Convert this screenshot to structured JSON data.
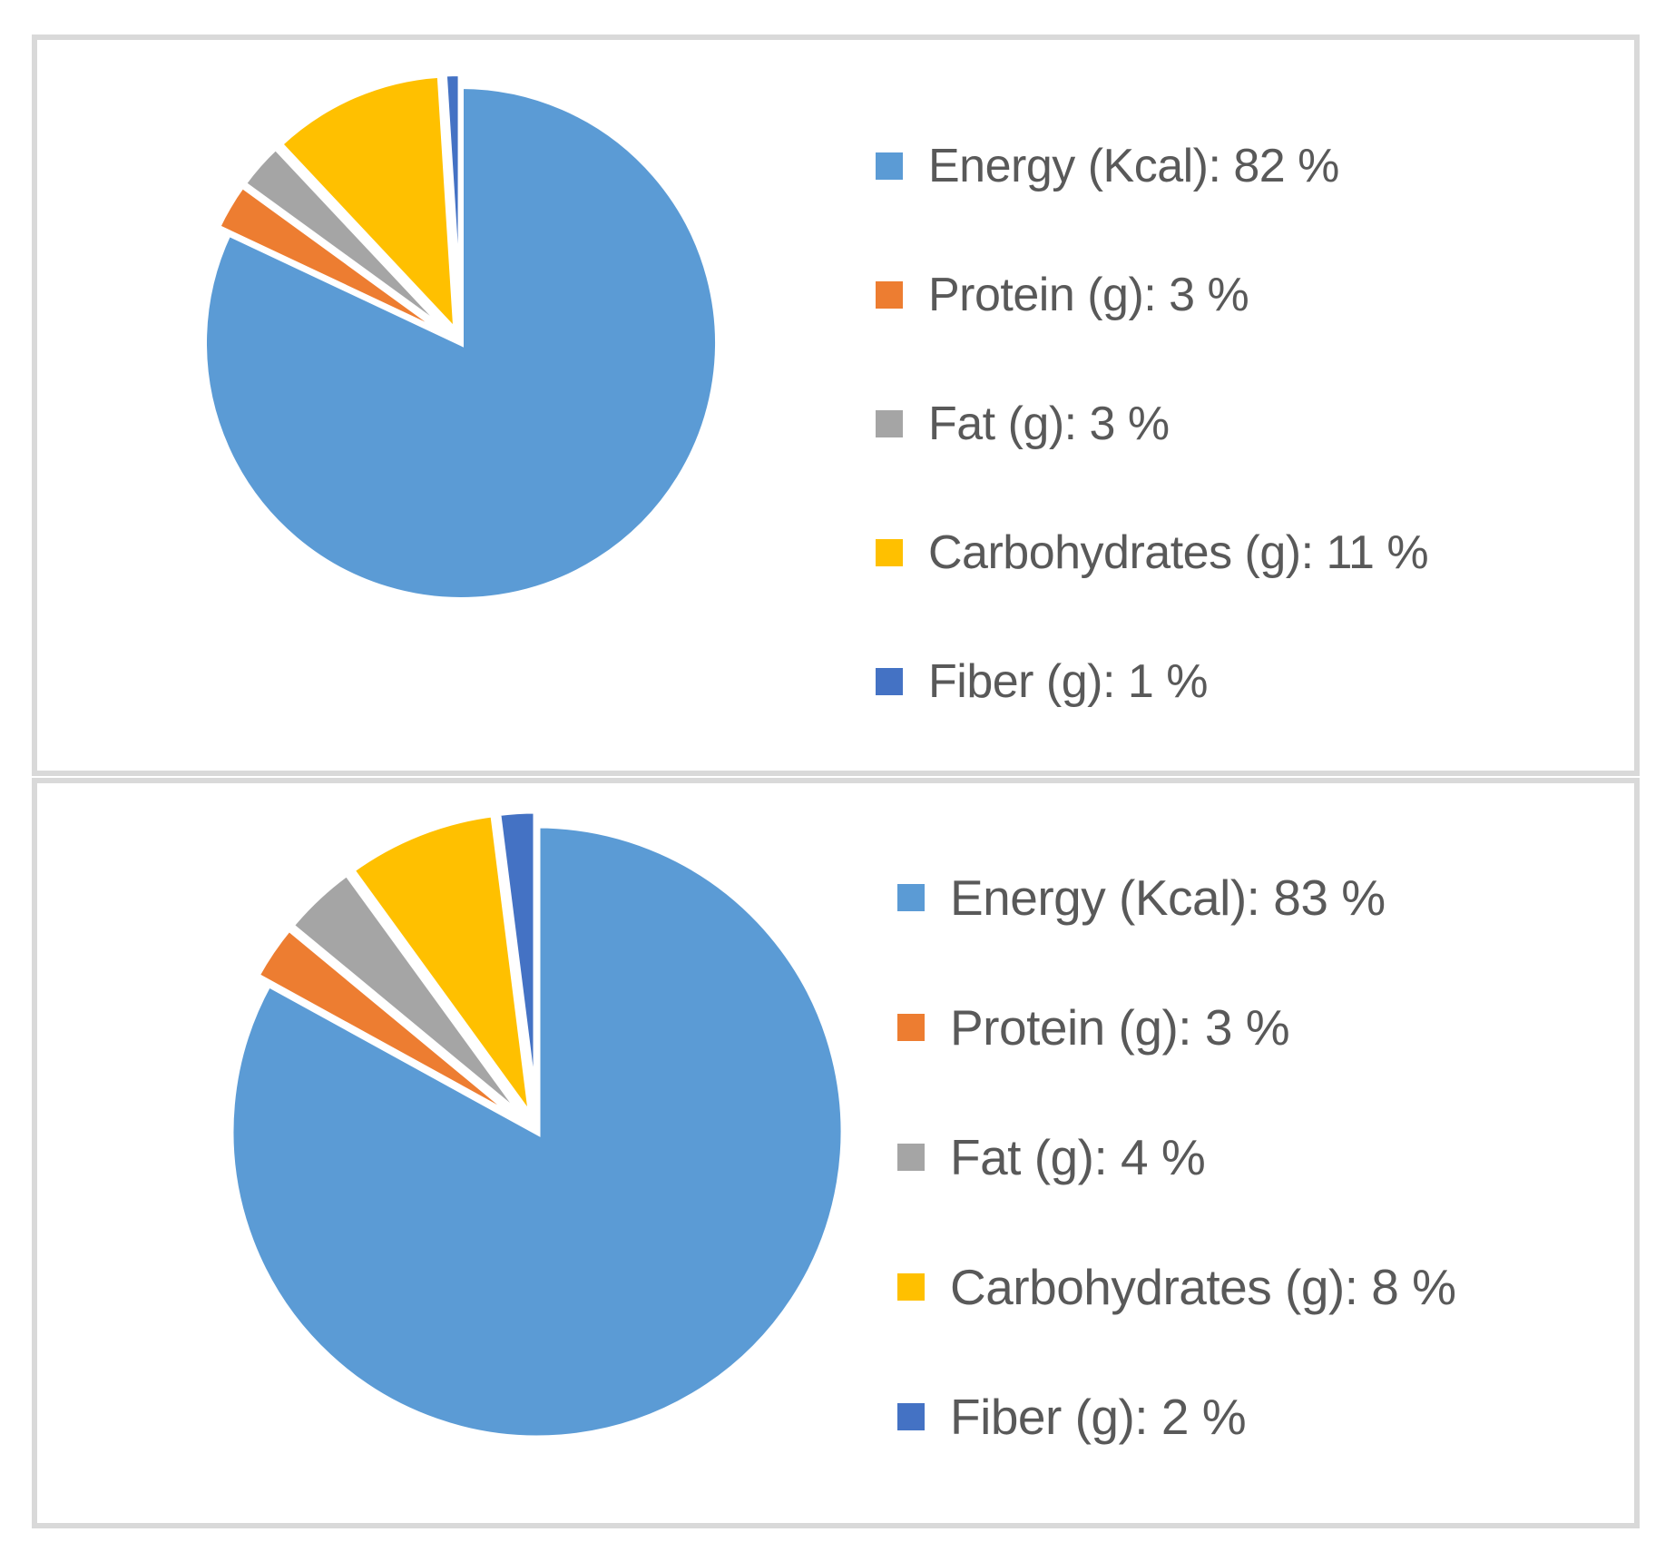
{
  "figure": {
    "description": "Two pie charts stacked vertically, each in a gray-bordered white panel with a legend on the right",
    "border_color": "#D9D9D9",
    "background_color": "#FFFFFF",
    "text_color": "#595959"
  },
  "chart_data": [
    {
      "type": "pie",
      "title": "",
      "categories": [
        "Energy (Kcal)",
        "Protein (g)",
        "Fat (g)",
        "Carbohydrates (g)",
        "Fiber (g)"
      ],
      "values": [
        82,
        3,
        3,
        11,
        1
      ],
      "unit": "%",
      "colors": [
        "#5B9BD5",
        "#ED7D31",
        "#A5A5A5",
        "#FFC000",
        "#4472C4"
      ],
      "slice_ids": [
        "energy",
        "protein",
        "fat",
        "carbohydrates",
        "fiber"
      ],
      "legend_labels": [
        "Energy (Kcal): 82 %",
        "Protein (g): 3 %",
        "Fat (g): 3 %",
        "Carbohydrates (g): 11 %",
        "Fiber (g): 1 %"
      ],
      "legend_position": "right",
      "start_angle_deg": 0,
      "direction": "clockwise"
    },
    {
      "type": "pie",
      "title": "",
      "categories": [
        "Energy (Kcal)",
        "Protein (g)",
        "Fat (g)",
        "Carbohydrates (g)",
        "Fiber (g)"
      ],
      "values": [
        83,
        3,
        4,
        8,
        2
      ],
      "unit": "%",
      "colors": [
        "#5B9BD5",
        "#ED7D31",
        "#A5A5A5",
        "#FFC000",
        "#4472C4"
      ],
      "slice_ids": [
        "energy",
        "protein",
        "fat",
        "carbohydrates",
        "fiber"
      ],
      "legend_labels": [
        "Energy (Kcal): 83 %",
        "Protein (g): 3 %",
        "Fat (g): 4 %",
        "Carbohydrates (g): 8 %",
        "Fiber (g): 2 %"
      ],
      "legend_position": "right",
      "start_angle_deg": 0,
      "direction": "clockwise"
    }
  ]
}
